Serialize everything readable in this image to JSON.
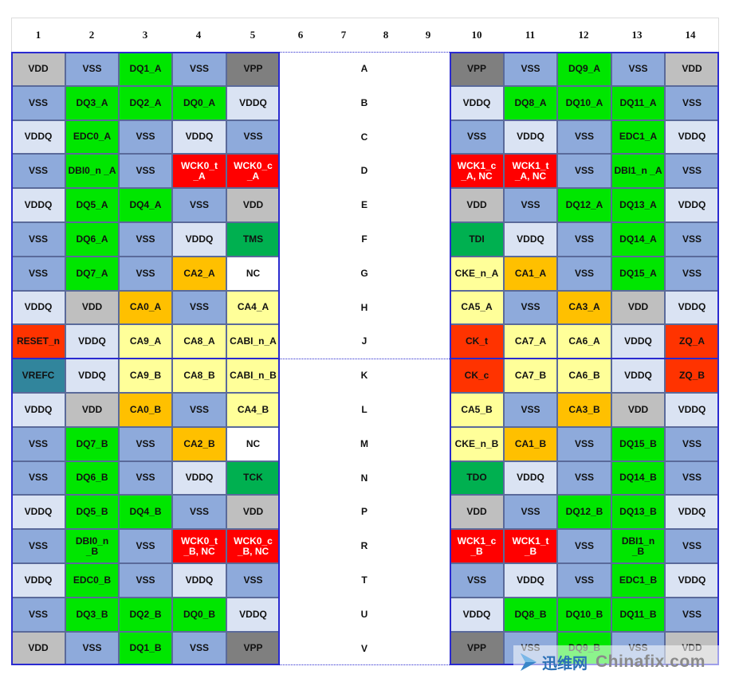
{
  "columns": [
    "1",
    "2",
    "3",
    "4",
    "5",
    "6",
    "7",
    "8",
    "9",
    "10",
    "11",
    "12",
    "13",
    "14"
  ],
  "row_labels": [
    "A",
    "B",
    "C",
    "D",
    "E",
    "F",
    "G",
    "H",
    "J",
    "K",
    "L",
    "M",
    "N",
    "P",
    "R",
    "T",
    "U",
    "V"
  ],
  "colors": {
    "gray": "#bfbfbf",
    "gray_dark": "#7f7f7f",
    "blue": "#8eaadb",
    "blue_light": "#dae3f3",
    "green": "#00e600",
    "green_dark": "#00b050",
    "red": "#ff0000",
    "orange": "#ffc000",
    "yellow": "#ffff99",
    "white": "#ffffff",
    "teal": "#31859c",
    "zq_red": "#ff3300",
    "border_blue": "#2a2ad0"
  },
  "left_pins": [
    [
      [
        "VDD",
        "gray"
      ],
      [
        "VSS",
        "blue"
      ],
      [
        "DQ1_A",
        "green"
      ],
      [
        "VSS",
        "blue"
      ],
      [
        "VPP",
        "gray_dark"
      ]
    ],
    [
      [
        "VSS",
        "blue"
      ],
      [
        "DQ3_A",
        "green"
      ],
      [
        "DQ2_A",
        "green"
      ],
      [
        "DQ0_A",
        "green"
      ],
      [
        "VDDQ",
        "blue_light"
      ]
    ],
    [
      [
        "VDDQ",
        "blue_light"
      ],
      [
        "EDC0_A",
        "green"
      ],
      [
        "VSS",
        "blue"
      ],
      [
        "VDDQ",
        "blue_light"
      ],
      [
        "VSS",
        "blue"
      ]
    ],
    [
      [
        "VSS",
        "blue"
      ],
      [
        "DBI0_n _A",
        "green"
      ],
      [
        "VSS",
        "blue"
      ],
      [
        "WCK0_t\n_A",
        "red"
      ],
      [
        "WCK0_c\n_A",
        "red"
      ]
    ],
    [
      [
        "VDDQ",
        "blue_light"
      ],
      [
        "DQ5_A",
        "green"
      ],
      [
        "DQ4_A",
        "green"
      ],
      [
        "VSS",
        "blue"
      ],
      [
        "VDD",
        "gray"
      ]
    ],
    [
      [
        "VSS",
        "blue"
      ],
      [
        "DQ6_A",
        "green"
      ],
      [
        "VSS",
        "blue"
      ],
      [
        "VDDQ",
        "blue_light"
      ],
      [
        "TMS",
        "green_dark"
      ]
    ],
    [
      [
        "VSS",
        "blue"
      ],
      [
        "DQ7_A",
        "green"
      ],
      [
        "VSS",
        "blue"
      ],
      [
        "CA2_A",
        "orange"
      ],
      [
        "NC",
        "white"
      ]
    ],
    [
      [
        "VDDQ",
        "blue_light"
      ],
      [
        "VDD",
        "gray"
      ],
      [
        "CA0_A",
        "orange"
      ],
      [
        "VSS",
        "blue"
      ],
      [
        "CA4_A",
        "yellow"
      ]
    ],
    [
      [
        "RESET_n",
        "zq_red"
      ],
      [
        "VDDQ",
        "blue_light"
      ],
      [
        "CA9_A",
        "yellow"
      ],
      [
        "CA8_A",
        "yellow"
      ],
      [
        "CABI_n_A",
        "yellow"
      ]
    ],
    [
      [
        "VREFC",
        "teal"
      ],
      [
        "VDDQ",
        "blue_light"
      ],
      [
        "CA9_B",
        "yellow"
      ],
      [
        "CA8_B",
        "yellow"
      ],
      [
        "CABI_n_B",
        "yellow"
      ]
    ],
    [
      [
        "VDDQ",
        "blue_light"
      ],
      [
        "VDD",
        "gray"
      ],
      [
        "CA0_B",
        "orange"
      ],
      [
        "VSS",
        "blue"
      ],
      [
        "CA4_B",
        "yellow"
      ]
    ],
    [
      [
        "VSS",
        "blue"
      ],
      [
        "DQ7_B",
        "green"
      ],
      [
        "VSS",
        "blue"
      ],
      [
        "CA2_B",
        "orange"
      ],
      [
        "NC",
        "white"
      ]
    ],
    [
      [
        "VSS",
        "blue"
      ],
      [
        "DQ6_B",
        "green"
      ],
      [
        "VSS",
        "blue"
      ],
      [
        "VDDQ",
        "blue_light"
      ],
      [
        "TCK",
        "green_dark"
      ]
    ],
    [
      [
        "VDDQ",
        "blue_light"
      ],
      [
        "DQ5_B",
        "green"
      ],
      [
        "DQ4_B",
        "green"
      ],
      [
        "VSS",
        "blue"
      ],
      [
        "VDD",
        "gray"
      ]
    ],
    [
      [
        "VSS",
        "blue"
      ],
      [
        "DBI0_n\n_B",
        "green"
      ],
      [
        "VSS",
        "blue"
      ],
      [
        "WCK0_t\n_B, NC",
        "red"
      ],
      [
        "WCK0_c\n_B, NC",
        "red"
      ]
    ],
    [
      [
        "VDDQ",
        "blue_light"
      ],
      [
        "EDC0_B",
        "green"
      ],
      [
        "VSS",
        "blue"
      ],
      [
        "VDDQ",
        "blue_light"
      ],
      [
        "VSS",
        "blue"
      ]
    ],
    [
      [
        "VSS",
        "blue"
      ],
      [
        "DQ3_B",
        "green"
      ],
      [
        "DQ2_B",
        "green"
      ],
      [
        "DQ0_B",
        "green"
      ],
      [
        "VDDQ",
        "blue_light"
      ]
    ],
    [
      [
        "VDD",
        "gray"
      ],
      [
        "VSS",
        "blue"
      ],
      [
        "DQ1_B",
        "green"
      ],
      [
        "VSS",
        "blue"
      ],
      [
        "VPP",
        "gray_dark"
      ]
    ]
  ],
  "right_pins": [
    [
      [
        "VPP",
        "gray_dark"
      ],
      [
        "VSS",
        "blue"
      ],
      [
        "DQ9_A",
        "green"
      ],
      [
        "VSS",
        "blue"
      ],
      [
        "VDD",
        "gray"
      ]
    ],
    [
      [
        "VDDQ",
        "blue_light"
      ],
      [
        "DQ8_A",
        "green"
      ],
      [
        "DQ10_A",
        "green"
      ],
      [
        "DQ11_A",
        "green"
      ],
      [
        "VSS",
        "blue"
      ]
    ],
    [
      [
        "VSS",
        "blue"
      ],
      [
        "VDDQ",
        "blue_light"
      ],
      [
        "VSS",
        "blue"
      ],
      [
        "EDC1_A",
        "green"
      ],
      [
        "VDDQ",
        "blue_light"
      ]
    ],
    [
      [
        "WCK1_c\n_A, NC",
        "red"
      ],
      [
        "WCK1_t\n_A, NC",
        "red"
      ],
      [
        "VSS",
        "blue"
      ],
      [
        "DBI1_n _A",
        "green"
      ],
      [
        "VSS",
        "blue"
      ]
    ],
    [
      [
        "VDD",
        "gray"
      ],
      [
        "VSS",
        "blue"
      ],
      [
        "DQ12_A",
        "green"
      ],
      [
        "DQ13_A",
        "green"
      ],
      [
        "VDDQ",
        "blue_light"
      ]
    ],
    [
      [
        "TDI",
        "green_dark"
      ],
      [
        "VDDQ",
        "blue_light"
      ],
      [
        "VSS",
        "blue"
      ],
      [
        "DQ14_A",
        "green"
      ],
      [
        "VSS",
        "blue"
      ]
    ],
    [
      [
        "CKE_n_A",
        "yellow"
      ],
      [
        "CA1_A",
        "orange"
      ],
      [
        "VSS",
        "blue"
      ],
      [
        "DQ15_A",
        "green"
      ],
      [
        "VSS",
        "blue"
      ]
    ],
    [
      [
        "CA5_A",
        "yellow"
      ],
      [
        "VSS",
        "blue"
      ],
      [
        "CA3_A",
        "orange"
      ],
      [
        "VDD",
        "gray"
      ],
      [
        "VDDQ",
        "blue_light"
      ]
    ],
    [
      [
        "CK_t",
        "zq_red"
      ],
      [
        "CA7_A",
        "yellow"
      ],
      [
        "CA6_A",
        "yellow"
      ],
      [
        "VDDQ",
        "blue_light"
      ],
      [
        "ZQ_A",
        "zq_red"
      ]
    ],
    [
      [
        "CK_c",
        "zq_red"
      ],
      [
        "CA7_B",
        "yellow"
      ],
      [
        "CA6_B",
        "yellow"
      ],
      [
        "VDDQ",
        "blue_light"
      ],
      [
        "ZQ_B",
        "zq_red"
      ]
    ],
    [
      [
        "CA5_B",
        "yellow"
      ],
      [
        "VSS",
        "blue"
      ],
      [
        "CA3_B",
        "orange"
      ],
      [
        "VDD",
        "gray"
      ],
      [
        "VDDQ",
        "blue_light"
      ]
    ],
    [
      [
        "CKE_n_B",
        "yellow"
      ],
      [
        "CA1_B",
        "orange"
      ],
      [
        "VSS",
        "blue"
      ],
      [
        "DQ15_B",
        "green"
      ],
      [
        "VSS",
        "blue"
      ]
    ],
    [
      [
        "TDO",
        "green_dark"
      ],
      [
        "VDDQ",
        "blue_light"
      ],
      [
        "VSS",
        "blue"
      ],
      [
        "DQ14_B",
        "green"
      ],
      [
        "VSS",
        "blue"
      ]
    ],
    [
      [
        "VDD",
        "gray"
      ],
      [
        "VSS",
        "blue"
      ],
      [
        "DQ12_B",
        "green"
      ],
      [
        "DQ13_B",
        "green"
      ],
      [
        "VDDQ",
        "blue_light"
      ]
    ],
    [
      [
        "WCK1_c\n_B",
        "red"
      ],
      [
        "WCK1_t\n_B",
        "red"
      ],
      [
        "VSS",
        "blue"
      ],
      [
        "DBI1_n\n_B",
        "green"
      ],
      [
        "VSS",
        "blue"
      ]
    ],
    [
      [
        "VSS",
        "blue"
      ],
      [
        "VDDQ",
        "blue_light"
      ],
      [
        "VSS",
        "blue"
      ],
      [
        "EDC1_B",
        "green"
      ],
      [
        "VDDQ",
        "blue_light"
      ]
    ],
    [
      [
        "VDDQ",
        "blue_light"
      ],
      [
        "DQ8_B",
        "green"
      ],
      [
        "DQ10_B",
        "green"
      ],
      [
        "DQ11_B",
        "green"
      ],
      [
        "VSS",
        "blue"
      ]
    ],
    [
      [
        "VPP",
        "gray_dark"
      ],
      [
        "VSS",
        "blue"
      ],
      [
        "DQ9_B",
        "green"
      ],
      [
        "VSS",
        "blue"
      ],
      [
        "VDD",
        "gray"
      ]
    ]
  ],
  "watermark": {
    "cn_text": "迅维网",
    "en_text": "Chinafix.com"
  }
}
